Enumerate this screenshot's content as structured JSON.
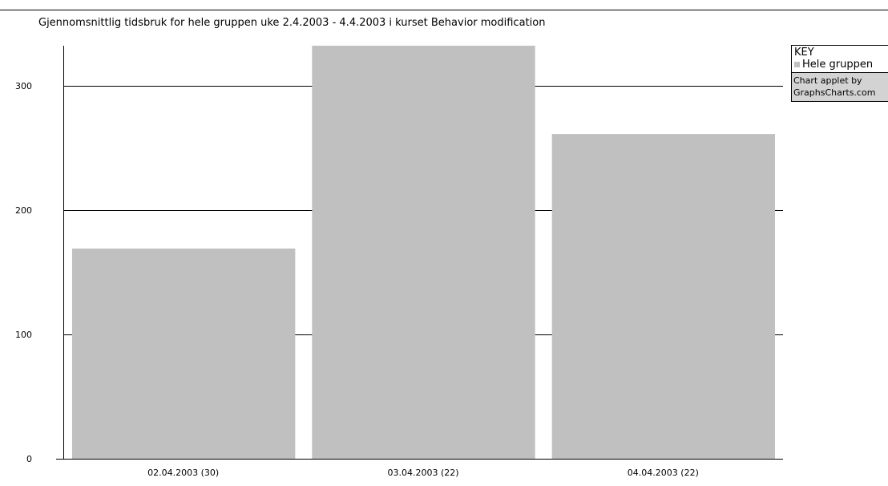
{
  "chart_data": {
    "type": "bar",
    "title": "Gjennomsnittlig tidsbruk for hele gruppen  uke 2.4.2003 - 4.4.2003 i kurset Behavior modification",
    "xlabel": "",
    "ylabel": "",
    "categories": [
      "02.04.2003 (30)",
      "03.04.2003 (22)",
      "04.04.2003 (22)"
    ],
    "series": [
      {
        "name": "Hele gruppen",
        "values": [
          169,
          332,
          261
        ],
        "color": "#c0c0c0"
      }
    ],
    "ylim": [
      0,
      332
    ],
    "yticks": [
      0,
      100,
      200,
      300
    ],
    "grid": true,
    "legend_position": "top-right"
  },
  "legend": {
    "header": "KEY",
    "item": "Hele gruppen"
  },
  "credit": {
    "line1": "Chart applet by",
    "line2": "GraphsCharts.com"
  }
}
